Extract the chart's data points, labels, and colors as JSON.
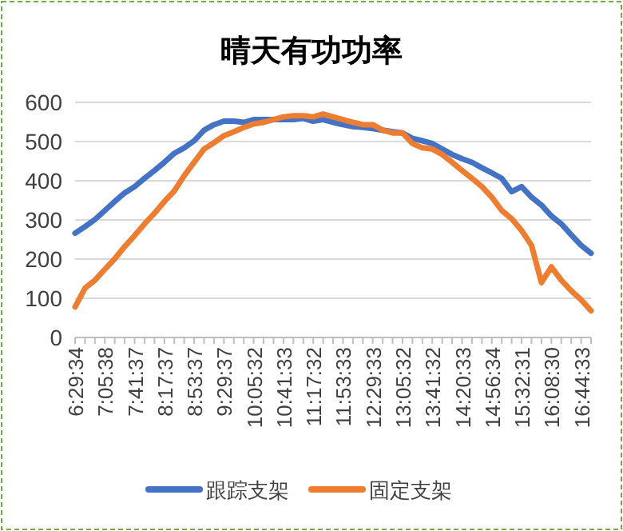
{
  "chart_data": {
    "type": "line",
    "title": "晴天有功功率",
    "categories": [
      "6:29:34",
      null,
      null,
      "7:05:38",
      null,
      null,
      "7:41:37",
      null,
      null,
      "8:17:37",
      null,
      null,
      "8:53:37",
      null,
      null,
      "9:29:37",
      null,
      null,
      "10:05:32",
      null,
      null,
      "10:41:33",
      null,
      null,
      "11:17:32",
      null,
      null,
      "11:53:33",
      null,
      null,
      "12:29:33",
      null,
      null,
      "13:05:32",
      null,
      null,
      "13:41:32",
      null,
      null,
      "14:20:33",
      null,
      null,
      "14:56:34",
      null,
      null,
      "15:32:31",
      null,
      null,
      "16:08:30",
      null,
      null,
      "16:44:33",
      null
    ],
    "series": [
      {
        "name": "跟踪支架",
        "color": "#4472c4",
        "values": [
          266,
          283,
          301,
          324,
          347,
          369,
          385,
          406,
          426,
          447,
          470,
          484,
          502,
          529,
          543,
          552,
          552,
          549,
          556,
          556,
          556,
          556,
          556,
          559,
          552,
          556,
          549,
          543,
          538,
          536,
          533,
          529,
          525,
          522,
          508,
          502,
          495,
          481,
          467,
          456,
          447,
          433,
          420,
          406,
          372,
          385,
          358,
          338,
          310,
          290,
          262,
          235,
          215
        ]
      },
      {
        "name": "固定支架",
        "color": "#ed7d31",
        "values": [
          78,
          126,
          146,
          174,
          201,
          232,
          260,
          290,
          317,
          347,
          374,
          413,
          447,
          481,
          497,
          515,
          525,
          536,
          545,
          549,
          556,
          563,
          566,
          566,
          563,
          570,
          563,
          556,
          549,
          543,
          543,
          529,
          522,
          522,
          495,
          484,
          481,
          467,
          447,
          426,
          406,
          385,
          358,
          324,
          303,
          273,
          235,
          140,
          180,
          146,
          119,
          96,
          68
        ]
      }
    ],
    "ylim": [
      0,
      600
    ],
    "yticks": [
      0,
      100,
      200,
      300,
      400,
      500,
      600
    ],
    "grid": "y",
    "legend": "bottom",
    "line_style": "solid",
    "marker": "none"
  }
}
